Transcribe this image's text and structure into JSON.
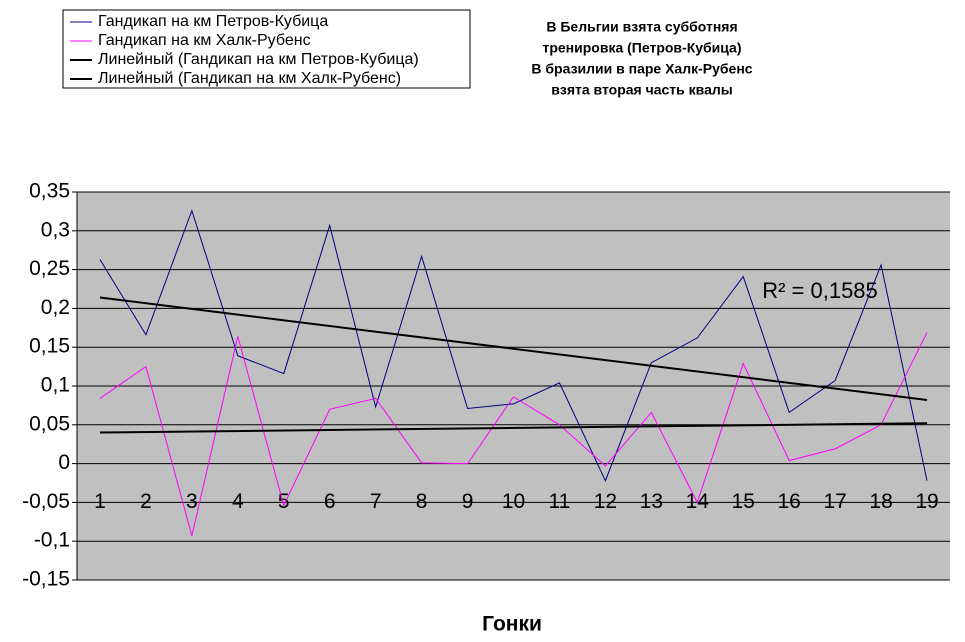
{
  "chart_data": {
    "type": "line",
    "notes": [
      "В Бельгии взята субботняя",
      "тренировка (Петров-Кубица)",
      "В бразилии в паре Халк-Рубенс",
      "взята вторая часть квалы"
    ],
    "xlabel": "Гонки",
    "categories": [
      "1",
      "2",
      "3",
      "4",
      "5",
      "6",
      "7",
      "8",
      "9",
      "10",
      "11",
      "12",
      "13",
      "14",
      "15",
      "16",
      "17",
      "18",
      "19"
    ],
    "series": [
      {
        "name": "Гандикап на км Петров-Кубица",
        "color": "#000080",
        "values": [
          0.263,
          0.166,
          0.326,
          0.139,
          0.116,
          0.307,
          0.073,
          0.267,
          0.071,
          0.077,
          0.104,
          -0.022,
          0.13,
          0.162,
          0.241,
          0.066,
          0.107,
          0.256,
          -0.022
        ]
      },
      {
        "name": "Гандикап на км Халк-Рубенс",
        "color": "#ff00ff",
        "values": [
          0.084,
          0.125,
          -0.093,
          0.164,
          -0.054,
          0.07,
          0.084,
          0.001,
          0,
          0.086,
          0.05,
          -0.003,
          0.066,
          -0.05,
          0.129,
          0.004,
          0.019,
          0.05,
          0.169
        ]
      }
    ],
    "trendlines": [
      {
        "name": "Линейный (Гандикап на км Петров-Кубица)",
        "color": "#000000",
        "x": [
          1,
          19
        ],
        "values": [
          0.214,
          0.082
        ]
      },
      {
        "name": "Линейный (Гандикап на км Халк-Рубенс)",
        "color": "#000000",
        "x": [
          1,
          19
        ],
        "values": [
          0.04,
          0.052
        ]
      }
    ],
    "annotation": "R² = 0,1585",
    "ylim": [
      -0.15,
      0.35
    ],
    "yticks": [
      {
        "value": -0.15,
        "label": "-0,15"
      },
      {
        "value": -0.1,
        "label": "-0,1"
      },
      {
        "value": -0.05,
        "label": "-0,05"
      },
      0,
      {
        "value": 0.05,
        "label": "0,05"
      },
      {
        "value": 0.1,
        "label": "0,1"
      },
      {
        "value": 0.15,
        "label": "0,15"
      },
      {
        "value": 0.2,
        "label": "0,2"
      },
      {
        "value": 0.25,
        "label": "0,25"
      },
      {
        "value": 0.3,
        "label": "0,3"
      },
      {
        "value": 0.35,
        "label": "0,35"
      }
    ],
    "grid": true,
    "plot_background": "#c0c0c0"
  }
}
